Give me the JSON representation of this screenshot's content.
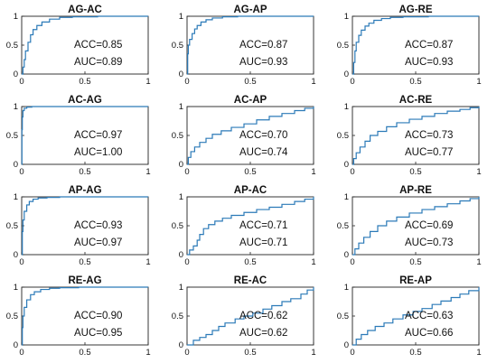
{
  "chart_data": [
    {
      "type": "line",
      "title": "AG-AC",
      "acc": "ACC=0.85",
      "auc": "AUC=0.89",
      "xlim": [
        0,
        1
      ],
      "ylim": [
        0,
        1
      ],
      "x": [
        0,
        0.01,
        0.02,
        0.03,
        0.05,
        0.07,
        0.09,
        0.12,
        0.16,
        0.22,
        0.3,
        0.4,
        0.6,
        0.8,
        1
      ],
      "y": [
        0,
        0.12,
        0.25,
        0.4,
        0.55,
        0.68,
        0.77,
        0.84,
        0.9,
        0.95,
        0.98,
        0.99,
        1,
        1,
        1
      ]
    },
    {
      "type": "line",
      "title": "AG-AP",
      "acc": "ACC=0.87",
      "auc": "AUC=0.93",
      "xlim": [
        0,
        1
      ],
      "ylim": [
        0,
        1
      ],
      "x": [
        0,
        0.005,
        0.01,
        0.02,
        0.04,
        0.06,
        0.08,
        0.11,
        0.15,
        0.2,
        0.28,
        0.4,
        0.6,
        0.8,
        1
      ],
      "y": [
        0,
        0.35,
        0.5,
        0.6,
        0.7,
        0.78,
        0.84,
        0.9,
        0.94,
        0.97,
        0.99,
        1,
        1,
        1,
        1
      ]
    },
    {
      "type": "line",
      "title": "AG-RE",
      "acc": "ACC=0.87",
      "auc": "AUC=0.93",
      "xlim": [
        0,
        1
      ],
      "ylim": [
        0,
        1
      ],
      "x": [
        0,
        0.01,
        0.02,
        0.03,
        0.05,
        0.07,
        0.1,
        0.13,
        0.17,
        0.23,
        0.3,
        0.4,
        0.6,
        0.8,
        1
      ],
      "y": [
        0,
        0.2,
        0.4,
        0.55,
        0.67,
        0.76,
        0.83,
        0.88,
        0.93,
        0.96,
        0.98,
        0.99,
        1,
        1,
        1
      ]
    },
    {
      "type": "line",
      "title": "AC-AG",
      "acc": "ACC=0.97",
      "auc": "AUC=1.00",
      "xlim": [
        0,
        1
      ],
      "ylim": [
        0,
        1
      ],
      "x": [
        0,
        0.002,
        0.005,
        0.01,
        0.02,
        0.04,
        0.08,
        0.2,
        0.5,
        1
      ],
      "y": [
        0,
        0.6,
        0.82,
        0.93,
        0.97,
        0.99,
        1,
        1,
        1,
        1
      ]
    },
    {
      "type": "line",
      "title": "AC-AP",
      "acc": "ACC=0.70",
      "auc": "AUC=0.74",
      "xlim": [
        0,
        1
      ],
      "ylim": [
        0,
        1
      ],
      "x": [
        0,
        0.01,
        0.03,
        0.06,
        0.1,
        0.15,
        0.2,
        0.27,
        0.35,
        0.45,
        0.55,
        0.65,
        0.75,
        0.85,
        0.93,
        1
      ],
      "y": [
        0,
        0.12,
        0.22,
        0.3,
        0.38,
        0.45,
        0.52,
        0.58,
        0.64,
        0.7,
        0.77,
        0.83,
        0.88,
        0.93,
        0.97,
        1
      ]
    },
    {
      "type": "line",
      "title": "AC-RE",
      "acc": "ACC=0.73",
      "auc": "AUC=0.77",
      "xlim": [
        0,
        1
      ],
      "ylim": [
        0,
        1
      ],
      "x": [
        0,
        0.01,
        0.03,
        0.06,
        0.1,
        0.14,
        0.2,
        0.27,
        0.35,
        0.45,
        0.55,
        0.65,
        0.75,
        0.85,
        0.93,
        1
      ],
      "y": [
        0,
        0.1,
        0.2,
        0.3,
        0.4,
        0.5,
        0.57,
        0.65,
        0.72,
        0.78,
        0.83,
        0.88,
        0.92,
        0.95,
        0.98,
        1
      ]
    },
    {
      "type": "line",
      "title": "AP-AG",
      "acc": "ACC=0.93",
      "auc": "AUC=0.97",
      "xlim": [
        0,
        1
      ],
      "ylim": [
        0,
        1
      ],
      "x": [
        0,
        0.005,
        0.01,
        0.02,
        0.04,
        0.06,
        0.09,
        0.13,
        0.2,
        0.3,
        0.5,
        0.8,
        1
      ],
      "y": [
        0,
        0.4,
        0.6,
        0.75,
        0.86,
        0.92,
        0.96,
        0.98,
        0.99,
        1,
        1,
        1,
        1
      ]
    },
    {
      "type": "line",
      "title": "AP-AC",
      "acc": "ACC=0.71",
      "auc": "AUC=0.71",
      "xlim": [
        0,
        1
      ],
      "ylim": [
        0,
        1
      ],
      "x": [
        0,
        0.02,
        0.05,
        0.08,
        0.1,
        0.13,
        0.17,
        0.22,
        0.28,
        0.35,
        0.45,
        0.55,
        0.65,
        0.75,
        0.85,
        0.93,
        1
      ],
      "y": [
        0,
        0.08,
        0.15,
        0.25,
        0.35,
        0.45,
        0.52,
        0.58,
        0.63,
        0.68,
        0.73,
        0.78,
        0.82,
        0.87,
        0.92,
        0.96,
        1
      ]
    },
    {
      "type": "line",
      "title": "AP-RE",
      "acc": "ACC=0.69",
      "auc": "AUC=0.73",
      "xlim": [
        0,
        1
      ],
      "ylim": [
        0,
        1
      ],
      "x": [
        0,
        0.02,
        0.05,
        0.09,
        0.14,
        0.2,
        0.27,
        0.35,
        0.45,
        0.55,
        0.65,
        0.75,
        0.85,
        0.93,
        1
      ],
      "y": [
        0,
        0.1,
        0.2,
        0.3,
        0.4,
        0.5,
        0.58,
        0.65,
        0.72,
        0.78,
        0.83,
        0.88,
        0.93,
        0.97,
        1
      ]
    },
    {
      "type": "line",
      "title": "RE-AG",
      "acc": "ACC=0.90",
      "auc": "AUC=0.95",
      "xlim": [
        0,
        1
      ],
      "ylim": [
        0,
        1
      ],
      "x": [
        0,
        0.005,
        0.01,
        0.02,
        0.04,
        0.07,
        0.1,
        0.15,
        0.22,
        0.3,
        0.45,
        0.7,
        1
      ],
      "y": [
        0,
        0.3,
        0.5,
        0.65,
        0.78,
        0.87,
        0.92,
        0.96,
        0.98,
        0.99,
        1,
        1,
        1
      ]
    },
    {
      "type": "line",
      "title": "RE-AC",
      "acc": "ACC=0.62",
      "auc": "AUC=0.62",
      "xlim": [
        0,
        1
      ],
      "ylim": [
        0,
        1
      ],
      "x": [
        0,
        0.05,
        0.1,
        0.15,
        0.2,
        0.25,
        0.3,
        0.38,
        0.45,
        0.52,
        0.6,
        0.67,
        0.75,
        0.82,
        0.9,
        0.95,
        1
      ],
      "y": [
        0,
        0.08,
        0.13,
        0.18,
        0.25,
        0.32,
        0.38,
        0.45,
        0.5,
        0.55,
        0.62,
        0.68,
        0.75,
        0.8,
        0.88,
        0.95,
        1
      ]
    },
    {
      "type": "line",
      "title": "RE-AP",
      "acc": "ACC=0.63",
      "auc": "AUC=0.66",
      "xlim": [
        0,
        1
      ],
      "ylim": [
        0,
        1
      ],
      "x": [
        0,
        0.03,
        0.07,
        0.12,
        0.18,
        0.25,
        0.32,
        0.4,
        0.48,
        0.55,
        0.63,
        0.7,
        0.78,
        0.85,
        0.92,
        1
      ],
      "y": [
        0,
        0.1,
        0.18,
        0.25,
        0.32,
        0.38,
        0.45,
        0.52,
        0.58,
        0.63,
        0.7,
        0.76,
        0.82,
        0.88,
        0.94,
        1
      ]
    }
  ],
  "ticks": {
    "x0": "0",
    "x05": "0.5",
    "x1": "1",
    "y0": "0",
    "y05": "0.5",
    "y1": "1"
  },
  "colors": {
    "line": "#2b7ab8",
    "axes": "#222222"
  }
}
